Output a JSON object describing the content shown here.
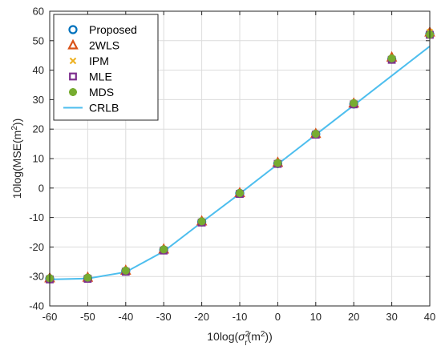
{
  "chart_data": {
    "type": "line",
    "xlabel_main": "10log(",
    "xlabel_sigma": "σ",
    "xlabel_sup": "2",
    "xlabel_sub": "r",
    "xlabel_mid": "(m",
    "xlabel_sup2": "2",
    "xlabel_end": "))",
    "ylabel_main": "10log(MSE(m",
    "ylabel_sup": "2",
    "ylabel_end": "))",
    "xlim": [
      -60,
      40
    ],
    "ylim": [
      -40,
      60
    ],
    "x_ticks": [
      "-60",
      "-50",
      "-40",
      "-30",
      "-20",
      "-10",
      "0",
      "10",
      "20",
      "30",
      "40"
    ],
    "y_ticks": [
      "-40",
      "-30",
      "-20",
      "-10",
      "0",
      "10",
      "20",
      "30",
      "40",
      "50",
      "60"
    ],
    "grid": true,
    "legend_position": "top-left",
    "x": [
      -60,
      -50,
      -40,
      -30,
      -20,
      -10,
      0,
      10,
      20,
      30,
      40
    ],
    "series": [
      {
        "name": "Proposed",
        "marker": "circle",
        "color": "#0072BD",
        "values": [
          -30.8,
          -30.6,
          -28.2,
          -21.0,
          -11.5,
          -1.8,
          8.3,
          18.3,
          28.5,
          43.7,
          52.2
        ]
      },
      {
        "name": "2WLS",
        "marker": "triangle",
        "color": "#D95319",
        "values": [
          -30.6,
          -30.4,
          -28.0,
          -20.8,
          -11.3,
          -1.7,
          8.6,
          18.4,
          28.7,
          44.3,
          52.8
        ]
      },
      {
        "name": "IPM",
        "marker": "x",
        "color": "#EDB120",
        "values": [
          -30.7,
          -30.5,
          -28.1,
          -20.9,
          -11.4,
          -1.8,
          8.5,
          18.4,
          28.6,
          43.9,
          52.9
        ]
      },
      {
        "name": "MLE",
        "marker": "square",
        "color": "#7E2F8E",
        "values": [
          -31.0,
          -30.8,
          -28.4,
          -21.2,
          -11.7,
          -2.0,
          8.2,
          18.1,
          28.4,
          43.5,
          52.0
        ]
      },
      {
        "name": "MDS",
        "marker": "asterisk",
        "color": "#77AC30",
        "values": [
          -30.6,
          -30.4,
          -28.0,
          -20.8,
          -11.3,
          -1.7,
          8.5,
          18.4,
          28.8,
          44.0,
          52.1
        ]
      },
      {
        "name": "CRLB",
        "marker": "line",
        "color": "#4DBEEE",
        "values": [
          -31.0,
          -30.7,
          -28.5,
          -21.5,
          -11.6,
          -1.9,
          8.1,
          18.1,
          28.1,
          38.1,
          48.1
        ]
      }
    ]
  }
}
